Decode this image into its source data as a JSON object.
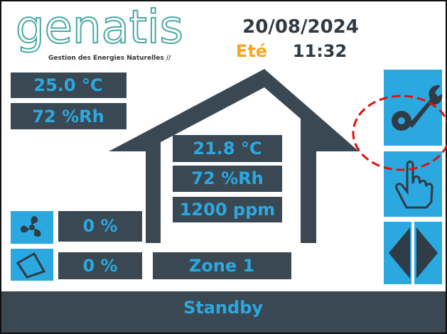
{
  "header": {
    "logo": "genatis",
    "tagline": "Gestion des Energies Naturelles //",
    "date": "20/08/2024",
    "season": "Eté",
    "time": "11:32"
  },
  "outdoor": {
    "temperature": "25.0 °C",
    "humidity": "72 %Rh"
  },
  "indoor": {
    "temperature": "21.8 °C",
    "humidity": "72 %Rh",
    "co2": "1200 ppm"
  },
  "ventilation": {
    "fan": "0 %",
    "damper": "0 %"
  },
  "zone": "Zone 1",
  "status": "Standby"
}
